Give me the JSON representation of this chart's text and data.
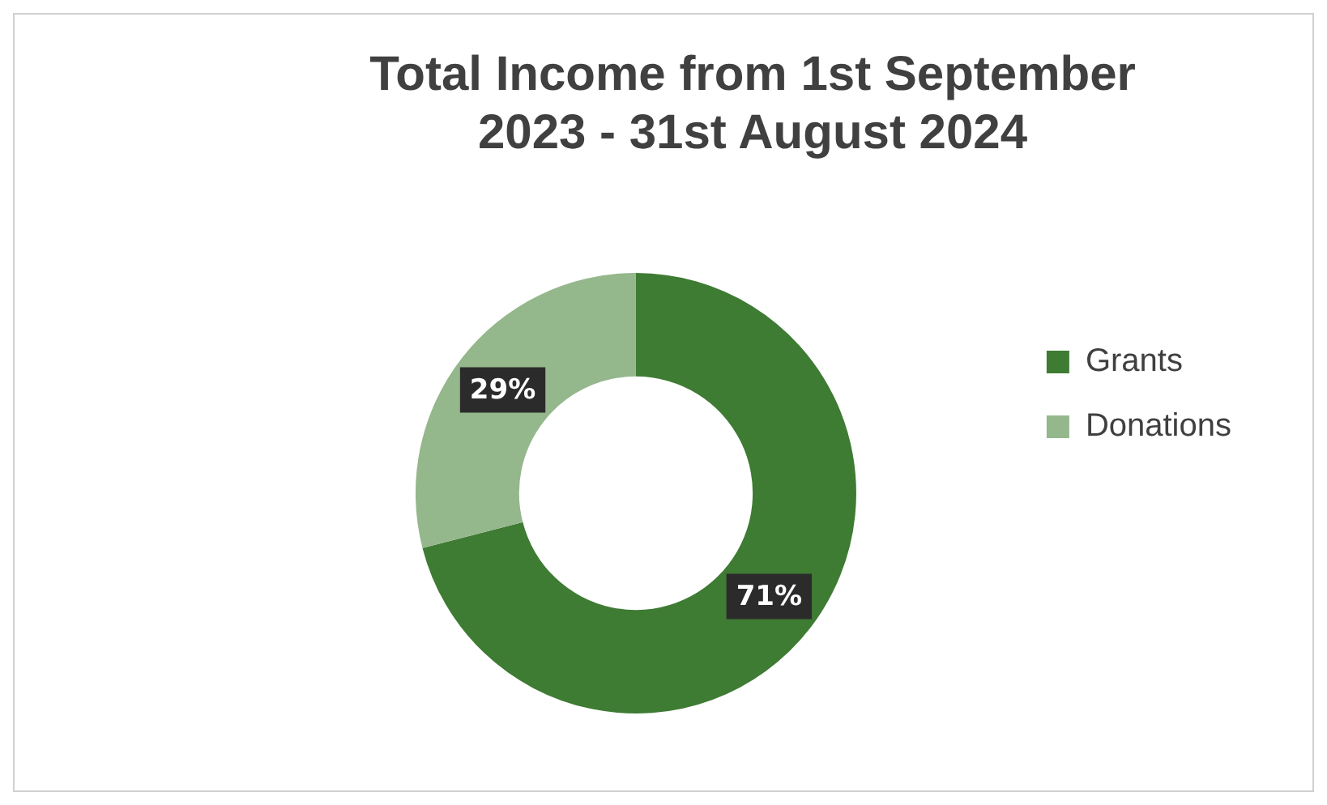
{
  "chart_data": {
    "type": "donut",
    "title": "Total Income from 1st September 2023 - 31st August 2024",
    "categories": [
      "Grants",
      "Donations"
    ],
    "values": [
      71,
      29
    ],
    "colors": [
      "#3e7b33",
      "#95b78c"
    ],
    "value_labels": [
      "71%",
      "29%"
    ],
    "legend": "right"
  }
}
